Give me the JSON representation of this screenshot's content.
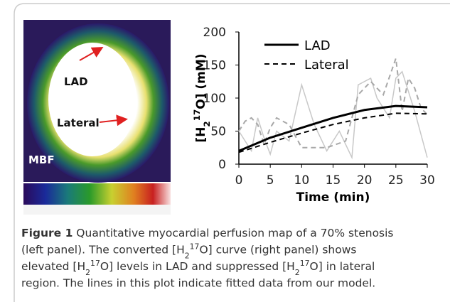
{
  "figure": {
    "panel_labels": {
      "lad": "LAD",
      "lateral": "Lateral",
      "mbf": "MBF"
    }
  },
  "chart_data": {
    "type": "line",
    "ylabel": [
      {
        "text": "[H"
      },
      {
        "text": "2",
        "style": "sub"
      },
      {
        "text": "17",
        "style": "sup"
      },
      {
        "text": "O] (mM)"
      }
    ],
    "xlabel": "Time (min)",
    "xlim": [
      0,
      30
    ],
    "xticks": [
      0,
      5,
      10,
      15,
      20,
      25,
      30
    ],
    "ylim": [
      0,
      200
    ],
    "yticks": [
      0,
      50,
      100,
      150,
      200
    ],
    "series": [
      {
        "color": "#c8c8c8",
        "dash": "solid",
        "width": 1.5,
        "x": [
          0,
          2,
          3,
          4,
          5,
          6,
          8,
          10,
          12,
          14,
          16,
          18,
          19,
          21,
          22,
          24,
          25,
          26,
          28,
          30
        ],
        "values": [
          50,
          20,
          70,
          40,
          15,
          50,
          35,
          120,
          60,
          20,
          50,
          10,
          120,
          130,
          100,
          70,
          130,
          140,
          80,
          10
        ]
      },
      {
        "color": "#a8a8a8",
        "dash": "dashed",
        "width": 2,
        "x": [
          0,
          1,
          2,
          3,
          4,
          5,
          6,
          8,
          10,
          14,
          17,
          19,
          21,
          23,
          25,
          26,
          27,
          28,
          29,
          30
        ],
        "values": [
          50,
          65,
          70,
          60,
          30,
          55,
          70,
          60,
          25,
          25,
          35,
          105,
          125,
          105,
          160,
          80,
          130,
          115,
          85,
          75
        ]
      },
      {
        "name": "LAD",
        "color": "#000000",
        "dash": "solid",
        "width": 3,
        "x": [
          0,
          5,
          10,
          15,
          20,
          25,
          30
        ],
        "values": [
          20,
          40,
          55,
          70,
          82,
          88,
          86
        ]
      },
      {
        "name": "Lateral",
        "color": "#000000",
        "dash": "dashed",
        "width": 2,
        "x": [
          0,
          5,
          10,
          15,
          20,
          25,
          30
        ],
        "values": [
          18,
          33,
          47,
          60,
          70,
          77,
          76
        ]
      }
    ]
  },
  "caption": {
    "lines": [
      [
        {
          "text": "Figure 1",
          "style": "bold"
        },
        {
          "text": " Quantitative myocardial perfusion map of a 70% stenosis"
        }
      ],
      [
        {
          "text": "(left panel). The converted [H"
        },
        {
          "text": "2",
          "style": "sub"
        },
        {
          "text": "17",
          "style": "sup"
        },
        {
          "text": "O] curve (right panel) shows"
        }
      ],
      [
        {
          "text": "elevated [H"
        },
        {
          "text": "2",
          "style": "sub"
        },
        {
          "text": "17",
          "style": "sup"
        },
        {
          "text": "O] levels in LAD and suppressed [H"
        },
        {
          "text": "2",
          "style": "sub"
        },
        {
          "text": "17",
          "style": "sup"
        },
        {
          "text": "O] in lateral"
        }
      ],
      [
        {
          "text": "region. The lines in this plot indicate fitted data from our model."
        }
      ]
    ]
  }
}
